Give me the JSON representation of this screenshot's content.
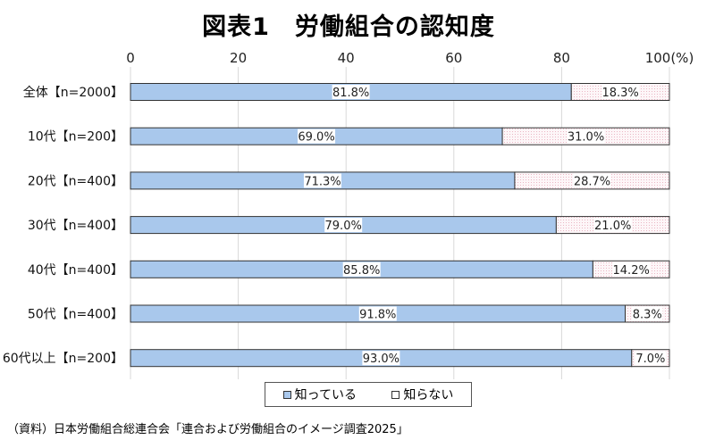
{
  "chart_data": {
    "type": "bar",
    "orientation": "horizontal",
    "stacked": true,
    "title": "図表1　労働組合の認知度",
    "categories": [
      "全体【n=2000】",
      "10代【n=200】",
      "20代【n=400】",
      "30代【n=400】",
      "40代【n=400】",
      "50代【n=400】",
      "60代以上【n=200】"
    ],
    "series": [
      {
        "name": "知っている",
        "values": [
          81.8,
          69.0,
          71.3,
          79.0,
          85.8,
          91.8,
          93.0
        ],
        "labels": [
          "81.8%",
          "69.0%",
          "71.3%",
          "79.0%",
          "85.8%",
          "91.8%",
          "93.0%"
        ],
        "color": "#a9c8ec"
      },
      {
        "name": "知らない",
        "values": [
          18.3,
          31.0,
          28.7,
          21.0,
          14.2,
          8.3,
          7.0
        ],
        "labels": [
          "18.3%",
          "31.0%",
          "28.7%",
          "21.0%",
          "14.2%",
          "8.3%",
          "7.0%"
        ],
        "color": "#fbf2f4"
      }
    ],
    "xaxis": {
      "ticks": [
        0,
        20,
        40,
        60,
        80,
        100
      ],
      "tick_labels": [
        "0",
        "20",
        "40",
        "60",
        "80",
        "100(%)"
      ],
      "range": [
        0,
        100
      ],
      "position": "top"
    },
    "grid": true,
    "legend_position": "bottom"
  },
  "source_note": "（資料）日本労働組合総連合会「連合および労働組合のイメージ調査2025」"
}
